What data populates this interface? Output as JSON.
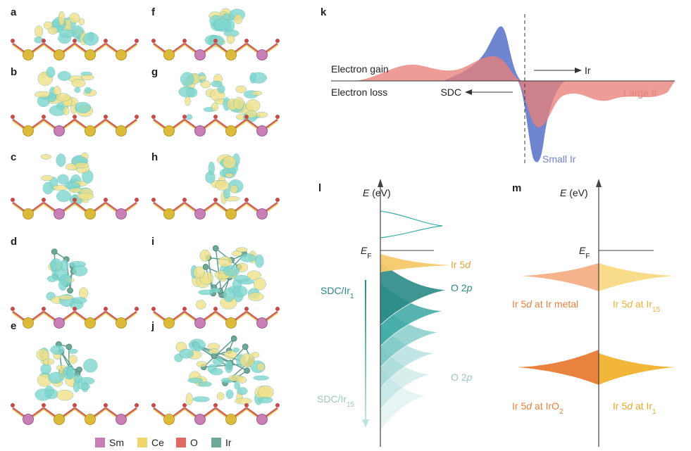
{
  "figure": {
    "panels": [
      "a",
      "b",
      "c",
      "d",
      "e",
      "f",
      "g",
      "h",
      "i",
      "j",
      "k",
      "l",
      "m"
    ],
    "legend": [
      "Sm",
      "Ce",
      "O",
      "Ir"
    ],
    "k": {
      "electron_gain": "Electron gain",
      "electron_loss": "Electron loss",
      "ir": "Ir",
      "sdc": "SDC",
      "large_ir": "Large Ir",
      "small_ir": "Small Ir"
    },
    "l": {
      "axis": [
        "E",
        " (eV)"
      ],
      "fermi": [
        "E",
        "F"
      ],
      "ir5d": [
        "Ir 5",
        "d"
      ],
      "o2p_top": [
        "O 2",
        "p"
      ],
      "o2p_bottom": [
        "O 2",
        "p"
      ],
      "sdc_ir1": [
        "SDC/Ir",
        "1"
      ],
      "sdc_ir15": [
        "SDC/Ir",
        "15"
      ]
    },
    "m": {
      "axis": [
        "E",
        " (eV)"
      ],
      "fermi": [
        "E",
        "F"
      ],
      "ir_metal": [
        "Ir 5",
        "d",
        " at Ir metal"
      ],
      "ir15": [
        "Ir 5",
        "d",
        " at Ir",
        "15"
      ],
      "iro2": [
        "Ir 5",
        "d",
        " at IrO",
        "2"
      ],
      "ir1": [
        "Ir 5",
        "d",
        " at Ir",
        "1"
      ]
    }
  }
}
